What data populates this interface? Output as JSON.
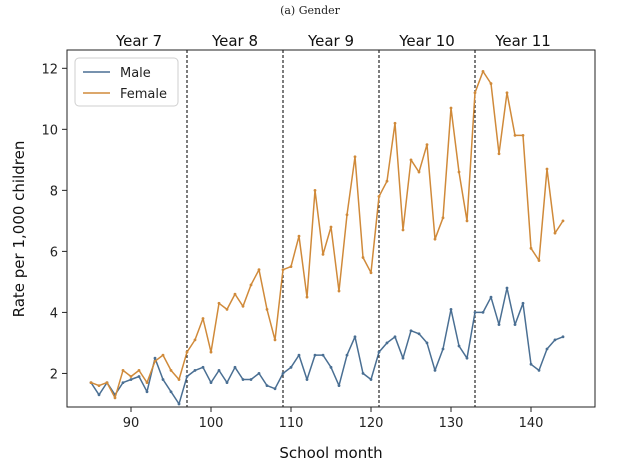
{
  "caption": "(a) Gender",
  "chart_data": {
    "type": "line",
    "title": "(a) Gender",
    "xlabel": "School month",
    "ylabel": "Rate per 1,000 children",
    "xlim": [
      82,
      148
    ],
    "ylim": [
      0.9,
      12.6
    ],
    "xticks": [
      90,
      100,
      110,
      120,
      130,
      140
    ],
    "yticks": [
      2,
      4,
      6,
      8,
      10,
      12
    ],
    "legend_position": "top-left",
    "dividers": [
      97,
      109,
      121,
      133
    ],
    "school_years": [
      {
        "label": "Year 7",
        "center": 91
      },
      {
        "label": "Year 8",
        "center": 103
      },
      {
        "label": "Year 9",
        "center": 115
      },
      {
        "label": "Year 10",
        "center": 127
      },
      {
        "label": "Year 11",
        "center": 139
      }
    ],
    "x": [
      85,
      86,
      87,
      88,
      89,
      90,
      91,
      92,
      93,
      94,
      95,
      96,
      97,
      98,
      99,
      100,
      101,
      102,
      103,
      104,
      105,
      106,
      107,
      108,
      109,
      110,
      111,
      112,
      113,
      114,
      115,
      116,
      117,
      118,
      119,
      120,
      121,
      122,
      123,
      124,
      125,
      126,
      127,
      128,
      129,
      130,
      131,
      132,
      133,
      134,
      135,
      136,
      137,
      138,
      139,
      140,
      141,
      142,
      143,
      144
    ],
    "series": [
      {
        "name": "Male",
        "color": "#4a6f93",
        "values": [
          1.7,
          1.3,
          1.7,
          1.3,
          1.7,
          1.8,
          1.9,
          1.4,
          2.5,
          1.8,
          1.4,
          1.0,
          1.9,
          2.1,
          2.2,
          1.7,
          2.1,
          1.7,
          2.2,
          1.8,
          1.8,
          2.0,
          1.6,
          1.5,
          2.0,
          2.2,
          2.6,
          1.8,
          2.6,
          2.6,
          2.2,
          1.6,
          2.6,
          3.2,
          2.0,
          1.8,
          2.7,
          3.0,
          3.2,
          2.5,
          3.4,
          3.3,
          3.0,
          2.1,
          2.8,
          4.1,
          2.9,
          2.5,
          4.0,
          4.0,
          4.5,
          3.6,
          4.8,
          3.6,
          4.3,
          2.3,
          2.1,
          2.8,
          3.1,
          3.2
        ]
      },
      {
        "name": "Female",
        "color": "#d08a3a",
        "values": [
          1.7,
          1.6,
          1.7,
          1.2,
          2.1,
          1.9,
          2.1,
          1.7,
          2.4,
          2.6,
          2.1,
          1.8,
          2.7,
          3.1,
          3.8,
          2.7,
          4.3,
          4.1,
          4.6,
          4.2,
          4.9,
          5.4,
          4.1,
          3.1,
          5.4,
          5.5,
          6.5,
          4.5,
          8.0,
          5.9,
          6.8,
          4.7,
          7.2,
          9.1,
          5.8,
          5.3,
          7.8,
          8.3,
          10.2,
          6.7,
          9.0,
          8.6,
          9.5,
          6.4,
          7.1,
          10.7,
          8.6,
          7.0,
          11.2,
          11.9,
          11.5,
          9.2,
          11.2,
          9.8,
          9.8,
          6.1,
          5.7,
          8.7,
          6.6,
          7.0
        ]
      }
    ]
  }
}
